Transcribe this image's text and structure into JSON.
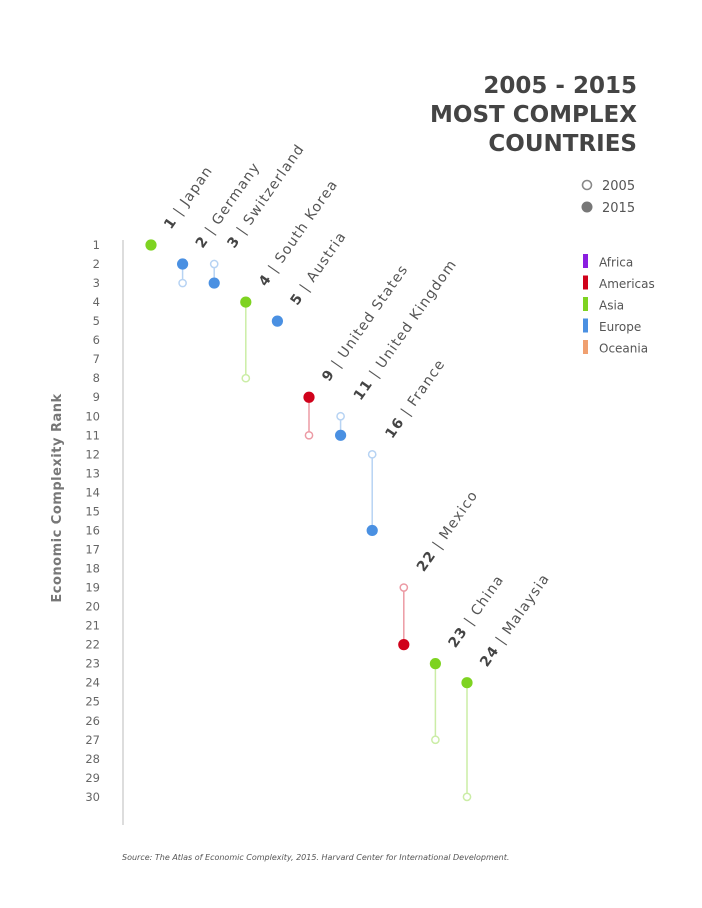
{
  "chart_data": {
    "type": "dumbbell",
    "title": [
      "2005 - 2015",
      "MOST COMPLEX",
      "COUNTRIES"
    ],
    "ylabel": "Economic Complexity Rank",
    "ylim": [
      1,
      30
    ],
    "y_ticks": [
      1,
      2,
      3,
      4,
      5,
      6,
      7,
      8,
      9,
      10,
      11,
      12,
      13,
      14,
      15,
      16,
      17,
      18,
      19,
      20,
      21,
      22,
      23,
      24,
      25,
      26,
      27,
      28,
      29,
      30
    ],
    "year_legend": [
      {
        "label": "2005",
        "style": "hollow"
      },
      {
        "label": "2015",
        "style": "filled"
      }
    ],
    "regions": [
      {
        "name": "Africa",
        "color": "#8a1ee0"
      },
      {
        "name": "Americas",
        "color": "#d0021b"
      },
      {
        "name": "Asia",
        "color": "#7ed321"
      },
      {
        "name": "Europe",
        "color": "#4a90e2"
      },
      {
        "name": "Oceania",
        "color": "#f0a070"
      }
    ],
    "countries": [
      {
        "rank_label": "1",
        "name": "Japan",
        "region": "Asia",
        "rank_2005": 1,
        "rank_2015": 1
      },
      {
        "rank_label": "2",
        "name": "Germany",
        "region": "Europe",
        "rank_2005": 3,
        "rank_2015": 2
      },
      {
        "rank_label": "3",
        "name": "Switzerland",
        "region": "Europe",
        "rank_2005": 2,
        "rank_2015": 3
      },
      {
        "rank_label": "4",
        "name": "South Korea",
        "region": "Asia",
        "rank_2005": 8,
        "rank_2015": 4
      },
      {
        "rank_label": "5",
        "name": "Austria",
        "region": "Europe",
        "rank_2005": 5,
        "rank_2015": 5
      },
      {
        "rank_label": "9",
        "name": "United States",
        "region": "Americas",
        "rank_2005": 11,
        "rank_2015": 9
      },
      {
        "rank_label": "11",
        "name": "United Kingdom",
        "region": "Europe",
        "rank_2005": 10,
        "rank_2015": 11
      },
      {
        "rank_label": "16",
        "name": "France",
        "region": "Europe",
        "rank_2005": 12,
        "rank_2015": 16
      },
      {
        "rank_label": "22",
        "name": "Mexico",
        "region": "Americas",
        "rank_2005": 19,
        "rank_2015": 22
      },
      {
        "rank_label": "23",
        "name": "China",
        "region": "Asia",
        "rank_2005": 27,
        "rank_2015": 23
      },
      {
        "rank_label": "24",
        "name": "Malaysia",
        "region": "Asia",
        "rank_2005": 30,
        "rank_2015": 24
      }
    ],
    "source": "Source: The Atlas of Economic Complexity, 2015. Harvard Center for International Development."
  }
}
